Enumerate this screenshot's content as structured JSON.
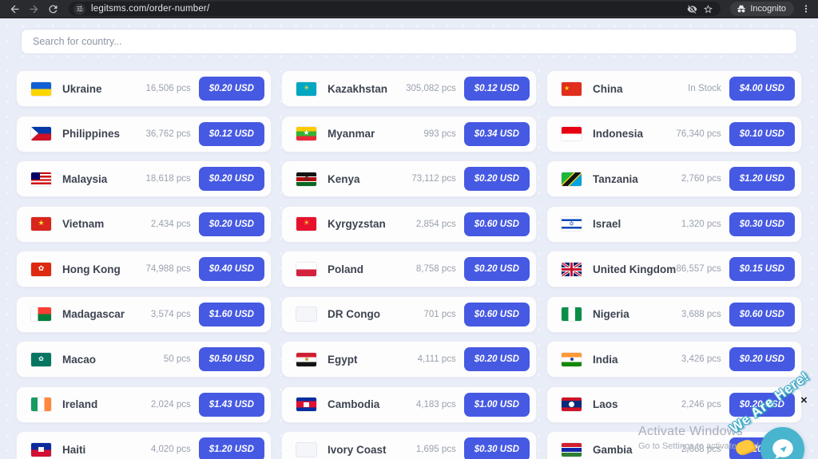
{
  "browser": {
    "url": "legitsms.com/order-number/",
    "incognito_label": "Incognito"
  },
  "colors": {
    "accent_button": "#4659e2",
    "page_background": "#e9edf8",
    "toolbar_background": "#2a2b2e",
    "chat_teal": "#49b4cd"
  },
  "page": {
    "search_placeholder": "Search for country...",
    "close_glyph": "×",
    "watermark": {
      "line1": "Activate Windows",
      "line2": "Go to Settings to activate Wind"
    },
    "chat": {
      "banner": "We Are Here!"
    }
  },
  "countries": [
    {
      "name": "Ukraine",
      "stock": "16,506 pcs",
      "price": "$0.20 USD",
      "flag": {
        "kind": "stripes",
        "dir": "b",
        "stops": [
          [
            "#115fd4",
            50
          ],
          [
            "#ffd500",
            100
          ]
        ]
      }
    },
    {
      "name": "Kazakhstan",
      "stock": "305,082 pcs",
      "price": "$0.12 USD",
      "flag": {
        "kind": "solid",
        "colors": [
          "#00a7c3"
        ],
        "emblem": {
          "ch": "☀",
          "color": "#ffd43b",
          "size": 9
        }
      }
    },
    {
      "name": "China",
      "stock": "In Stock",
      "price": "$4.00 USD",
      "flag": {
        "kind": "solid",
        "colors": [
          "#e02f1d"
        ],
        "emblem": {
          "ch": "★",
          "color": "#ffde00",
          "size": 8,
          "pos": "left"
        }
      }
    },
    {
      "name": "Philippines",
      "stock": "36,762 pcs",
      "price": "$0.12 USD",
      "flag": {
        "kind": "ph",
        "colors": [
          "#0038a8",
          "#ce1126"
        ]
      }
    },
    {
      "name": "Myanmar",
      "stock": "993 pcs",
      "price": "$0.34 USD",
      "flag": {
        "kind": "stripes",
        "dir": "b",
        "stops": [
          [
            "#fecb00",
            33
          ],
          [
            "#34b233",
            67
          ],
          [
            "#ea2839",
            100
          ]
        ],
        "emblem": {
          "ch": "★",
          "color": "#ffffff",
          "size": 9
        }
      }
    },
    {
      "name": "Indonesia",
      "stock": "76,340 pcs",
      "price": "$0.10 USD",
      "flag": {
        "kind": "stripes",
        "dir": "b",
        "stops": [
          [
            "#e70011",
            50
          ],
          [
            "#ffffff",
            100
          ]
        ]
      }
    },
    {
      "name": "Malaysia",
      "stock": "18,618 pcs",
      "price": "$0.20 USD",
      "flag": {
        "kind": "my"
      }
    },
    {
      "name": "Kenya",
      "stock": "73,112 pcs",
      "price": "$0.20 USD",
      "flag": {
        "kind": "stripes",
        "dir": "b",
        "stops": [
          [
            "#141414",
            28
          ],
          [
            "#ffffff",
            34
          ],
          [
            "#b40b0b",
            66
          ],
          [
            "#ffffff",
            72
          ],
          [
            "#0b6623",
            100
          ]
        ],
        "emblem": {
          "shape": "dot",
          "color": "#7a1c1c",
          "size": 6
        }
      }
    },
    {
      "name": "Tanzania",
      "stock": "2,760 pcs",
      "price": "$1.20 USD",
      "flag": {
        "kind": "stripes",
        "dir": "br",
        "stops": [
          [
            "#1eb53a",
            36
          ],
          [
            "#f7d618",
            41
          ],
          [
            "#141414",
            59
          ],
          [
            "#f7d618",
            64
          ],
          [
            "#00a3dd",
            100
          ]
        ]
      }
    },
    {
      "name": "Vietnam",
      "stock": "2,434 pcs",
      "price": "$0.20 USD",
      "flag": {
        "kind": "solid",
        "colors": [
          "#da251d"
        ],
        "emblem": {
          "ch": "★",
          "color": "#ffe135",
          "size": 9
        }
      }
    },
    {
      "name": "Kyrgyzstan",
      "stock": "2,854 pcs",
      "price": "$0.60 USD",
      "flag": {
        "kind": "solid",
        "colors": [
          "#e8112d"
        ],
        "emblem": {
          "ch": "☀",
          "color": "#ffd43b",
          "size": 9
        }
      }
    },
    {
      "name": "Israel",
      "stock": "1,320 pcs",
      "price": "$0.30 USD",
      "flag": {
        "kind": "stripes",
        "dir": "b",
        "stops": [
          [
            "#ffffff",
            16
          ],
          [
            "#0748b4",
            30
          ],
          [
            "#ffffff",
            70
          ],
          [
            "#0748b4",
            84
          ],
          [
            "#ffffff",
            100
          ]
        ],
        "emblem": {
          "ch": "✡",
          "color": "#0748b4",
          "size": 8
        }
      }
    },
    {
      "name": "Hong Kong",
      "stock": "74,988 pcs",
      "price": "$0.40 USD",
      "flag": {
        "kind": "solid",
        "colors": [
          "#de2910"
        ],
        "emblem": {
          "ch": "✿",
          "color": "#ffffff",
          "size": 9
        }
      }
    },
    {
      "name": "Poland",
      "stock": "8,758 pcs",
      "price": "$0.20 USD",
      "flag": {
        "kind": "stripes",
        "dir": "b",
        "stops": [
          [
            "#ffffff",
            50
          ],
          [
            "#d4213d",
            100
          ]
        ]
      }
    },
    {
      "name": "United Kingdom",
      "stock": "86,557 pcs",
      "price": "$0.15 USD",
      "flag": {
        "kind": "uk"
      }
    },
    {
      "name": "Madagascar",
      "stock": "3,574 pcs",
      "price": "$1.60 USD",
      "flag": {
        "kind": "mg",
        "colors": [
          "#ffffff",
          "#fc3d32",
          "#007e3a"
        ]
      }
    },
    {
      "name": "DR Congo",
      "stock": "701 pcs",
      "price": "$0.60 USD",
      "flag": {
        "kind": "placeholder"
      }
    },
    {
      "name": "Nigeria",
      "stock": "3,688 pcs",
      "price": "$0.60 USD",
      "flag": {
        "kind": "stripes",
        "dir": "r",
        "stops": [
          [
            "#0b8f47",
            33
          ],
          [
            "#ffffff",
            67
          ],
          [
            "#0b8f47",
            100
          ]
        ]
      }
    },
    {
      "name": "Macao",
      "stock": "50 pcs",
      "price": "$0.50 USD",
      "flag": {
        "kind": "solid",
        "colors": [
          "#067662"
        ],
        "emblem": {
          "ch": "✿",
          "color": "#ffffff",
          "size": 8
        }
      }
    },
    {
      "name": "Egypt",
      "stock": "4,111 pcs",
      "price": "$0.20 USD",
      "flag": {
        "kind": "stripes",
        "dir": "b",
        "stops": [
          [
            "#d01e2f",
            33
          ],
          [
            "#ffffff",
            67
          ],
          [
            "#141414",
            100
          ]
        ],
        "emblem": {
          "shape": "dot",
          "color": "#c7a447",
          "size": 4
        }
      }
    },
    {
      "name": "India",
      "stock": "3,426 pcs",
      "price": "$0.20 USD",
      "flag": {
        "kind": "stripes",
        "dir": "b",
        "stops": [
          [
            "#ff9933",
            33
          ],
          [
            "#ffffff",
            67
          ],
          [
            "#138808",
            100
          ]
        ],
        "emblem": {
          "shape": "dot",
          "color": "#2c3e9e",
          "size": 4
        }
      }
    },
    {
      "name": "Ireland",
      "stock": "2,024 pcs",
      "price": "$1.43 USD",
      "flag": {
        "kind": "stripes",
        "dir": "r",
        "stops": [
          [
            "#169b62",
            33
          ],
          [
            "#ffffff",
            67
          ],
          [
            "#ff883e",
            100
          ]
        ]
      }
    },
    {
      "name": "Cambodia",
      "stock": "4,183 pcs",
      "price": "$1.00 USD",
      "flag": {
        "kind": "stripes",
        "dir": "b",
        "stops": [
          [
            "#032ea1",
            27
          ],
          [
            "#df1231",
            73
          ],
          [
            "#032ea1",
            100
          ]
        ],
        "emblem": {
          "shape": "rect",
          "color": "#ffffff",
          "size": 7
        }
      }
    },
    {
      "name": "Laos",
      "stock": "2,246 pcs",
      "price": "$0.20 USD",
      "flag": {
        "kind": "stripes",
        "dir": "b",
        "stops": [
          [
            "#ce1126",
            25
          ],
          [
            "#0a2a7a",
            75
          ],
          [
            "#ce1126",
            100
          ]
        ],
        "emblem": {
          "shape": "dot",
          "color": "#ffffff",
          "size": 7
        }
      }
    },
    {
      "name": "Haiti",
      "stock": "4,020 pcs",
      "price": "$1.20 USD",
      "flag": {
        "kind": "stripes",
        "dir": "b",
        "stops": [
          [
            "#0a2a9e",
            50
          ],
          [
            "#d21034",
            100
          ]
        ],
        "emblem": {
          "shape": "rect",
          "color": "#f2f2f2",
          "size": 7
        }
      }
    },
    {
      "name": "Ivory Coast",
      "stock": "1,695 pcs",
      "price": "$0.30 USD",
      "flag": {
        "kind": "placeholder"
      }
    },
    {
      "name": "Gambia",
      "stock": "2,668 pcs",
      "price": "$1.20 USD",
      "flag": {
        "kind": "stripes",
        "dir": "b",
        "stops": [
          [
            "#d01e2f",
            30
          ],
          [
            "#ffffff",
            36
          ],
          [
            "#1226a8",
            64
          ],
          [
            "#ffffff",
            70
          ],
          [
            "#2e7d32",
            100
          ]
        ]
      }
    }
  ]
}
